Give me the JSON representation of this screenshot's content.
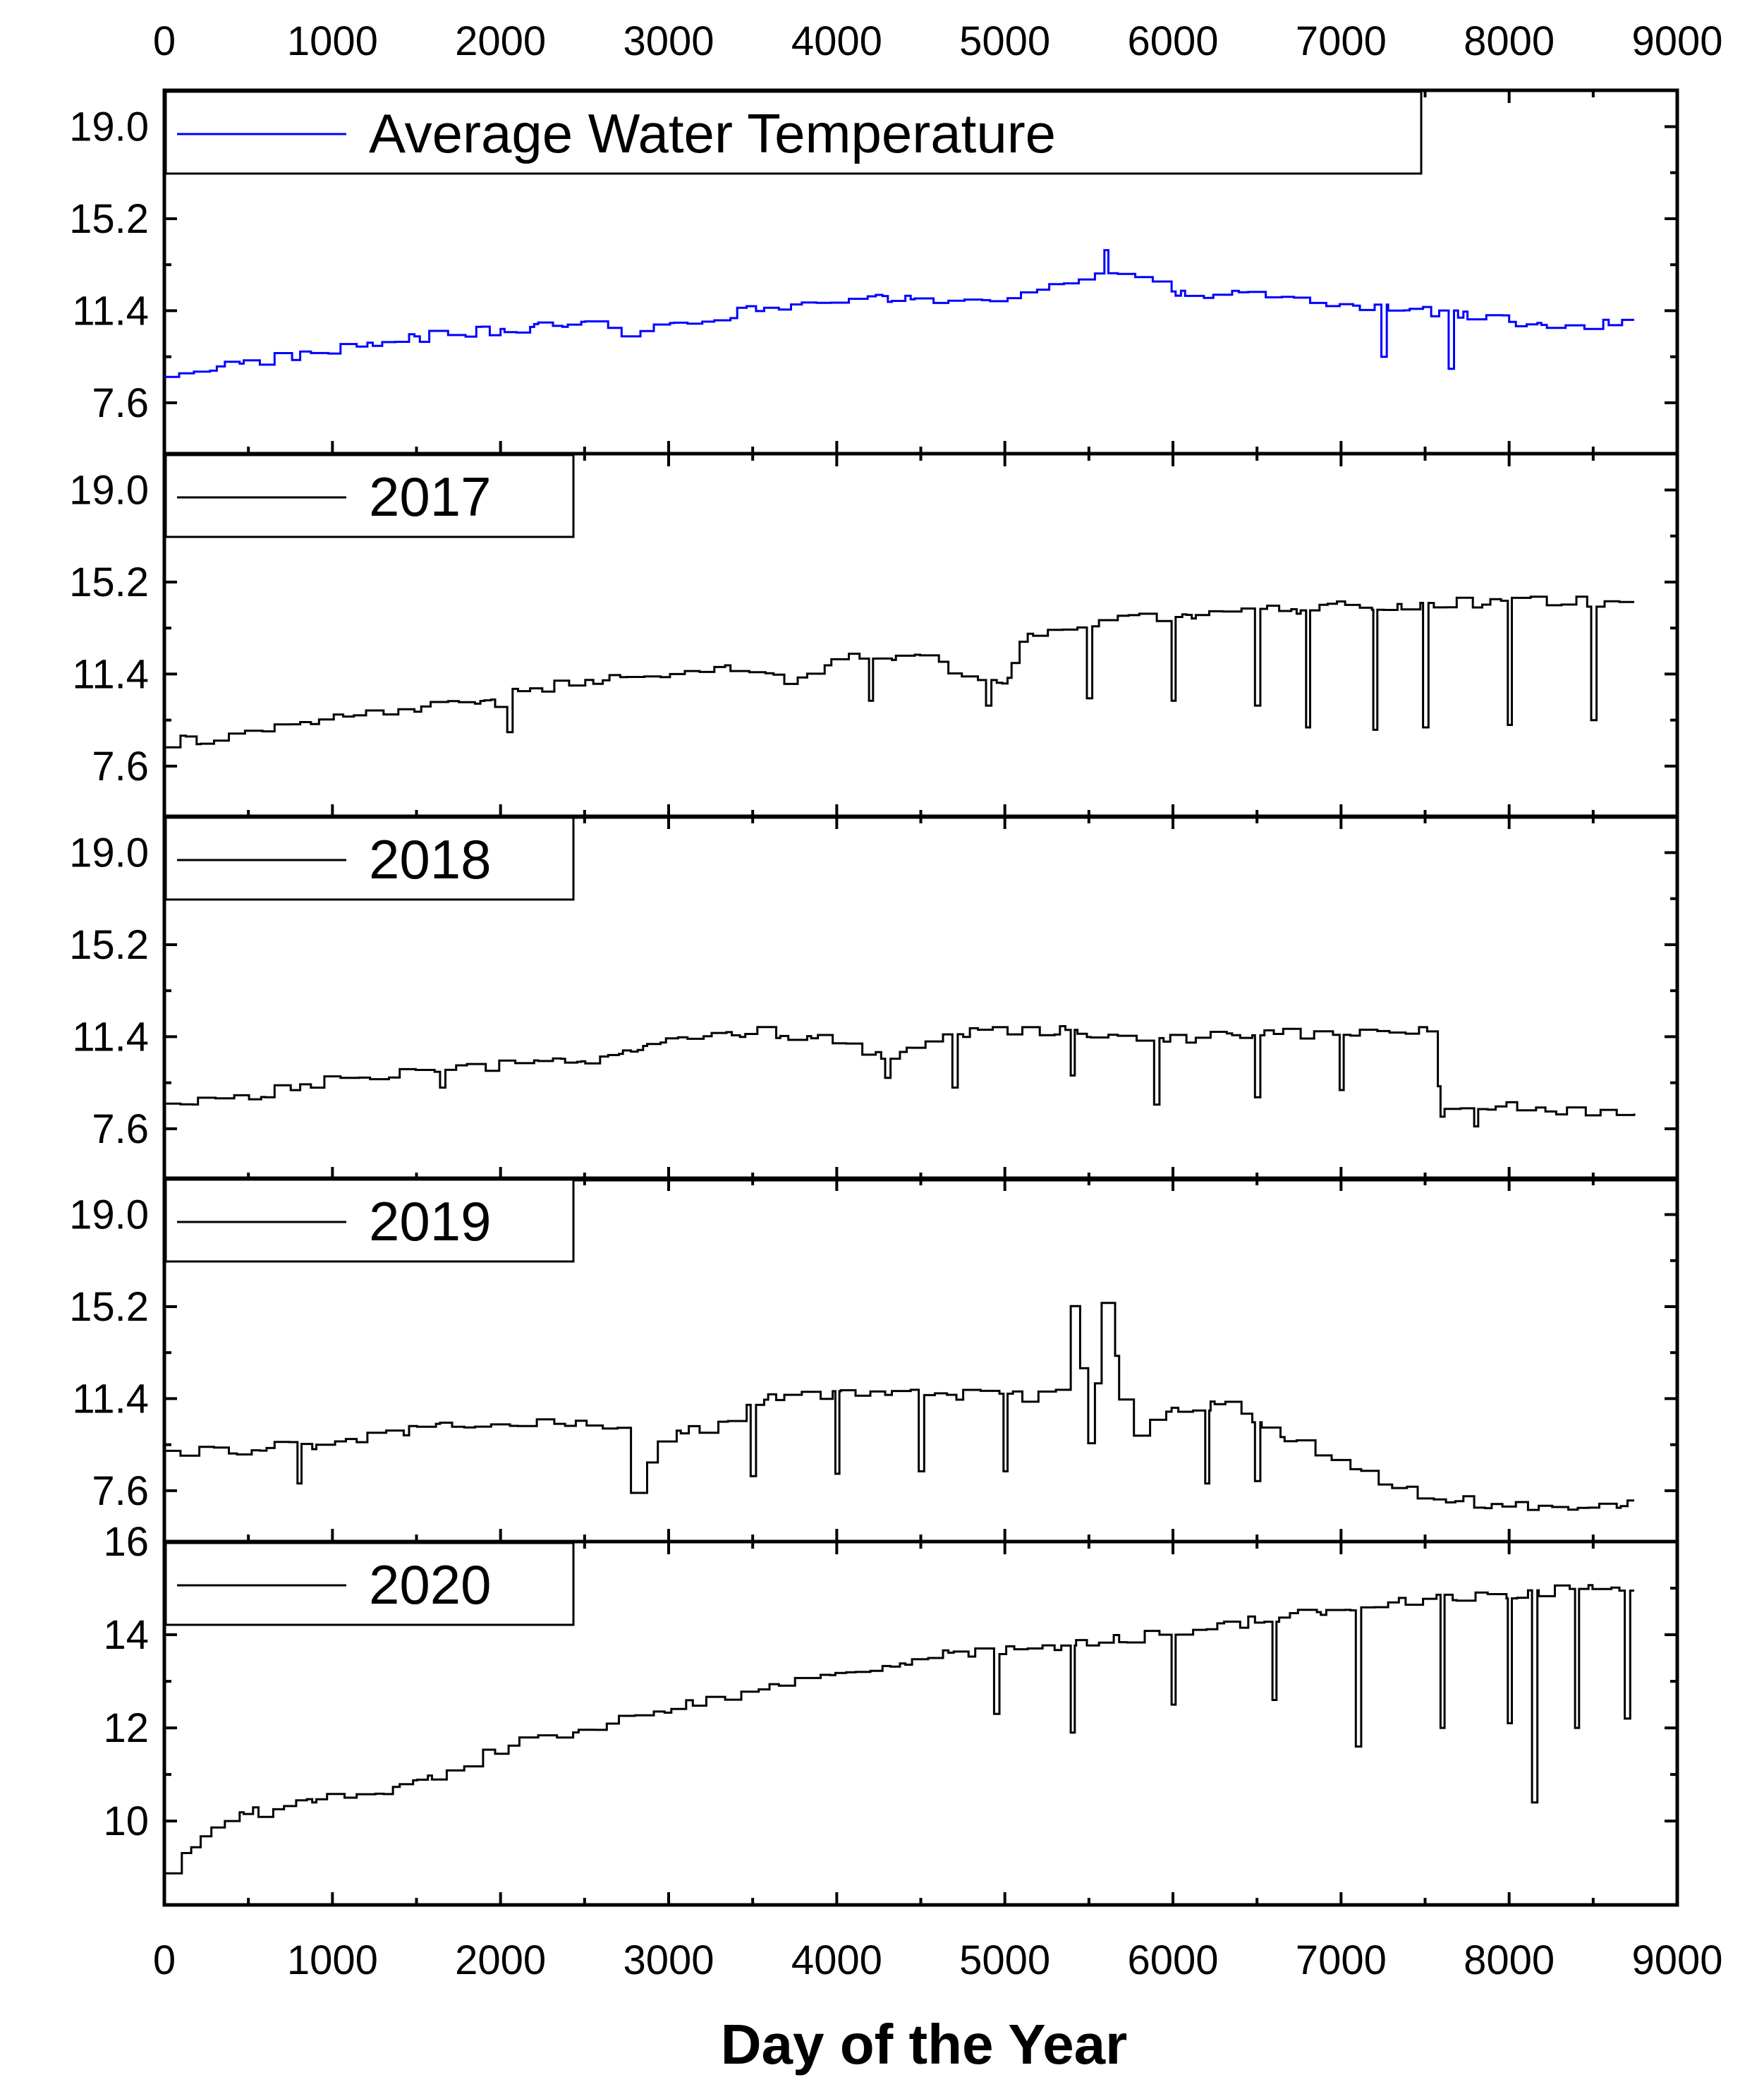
{
  "chart_data": {
    "type": "line",
    "layout": "five vertically stacked panels sharing one x axis",
    "xlabel": "Day of the Year",
    "xlim": [
      0,
      9000
    ],
    "xticks": [
      0,
      1000,
      2000,
      3000,
      4000,
      5000,
      6000,
      7000,
      8000,
      9000
    ],
    "x_tick_labels": [
      "0",
      "1000",
      "2000",
      "3000",
      "4000",
      "5000",
      "6000",
      "7000",
      "8000",
      "9000"
    ],
    "x_axis_labels_shown": "top and bottom",
    "grid": false,
    "legend_position": "top-left of each panel",
    "panels": [
      {
        "name": "Average Water Temperature",
        "color": "#0000ff",
        "ylim": [
          5.5,
          20.5
        ],
        "yticks": [
          7.6,
          11.4,
          15.2,
          19.0
        ],
        "y_tick_labels": [
          "7.6",
          "11.4",
          "15.2",
          "19.0"
        ],
        "points": [
          [
            0,
            8.8
          ],
          [
            500,
            9.3
          ],
          [
            1000,
            9.8
          ],
          [
            1500,
            10.3
          ],
          [
            2000,
            10.6
          ],
          [
            2500,
            10.9
          ],
          [
            2800,
            10.4
          ],
          [
            3000,
            11.0
          ],
          [
            3500,
            11.4
          ],
          [
            4000,
            11.9
          ],
          [
            4500,
            11.8
          ],
          [
            5000,
            12.0
          ],
          [
            5300,
            12.5
          ],
          [
            5600,
            12.9
          ],
          [
            6000,
            12.2
          ],
          [
            6500,
            12.0
          ],
          [
            7000,
            11.6
          ],
          [
            7500,
            11.4
          ],
          [
            8000,
            11.0
          ],
          [
            8500,
            10.8
          ],
          [
            8750,
            11.0
          ]
        ],
        "spikes": [
          [
            5600,
            13.9
          ],
          [
            7250,
            9.5
          ],
          [
            7650,
            9.0
          ]
        ]
      },
      {
        "name": "2017",
        "color": "#000000",
        "ylim": [
          5.5,
          20.5
        ],
        "yticks": [
          7.6,
          11.4,
          15.2,
          19.0
        ],
        "y_tick_labels": [
          "7.6",
          "11.4",
          "15.2",
          "19.0"
        ],
        "points": [
          [
            0,
            8.6
          ],
          [
            500,
            8.9
          ],
          [
            1000,
            9.6
          ],
          [
            1500,
            10.0
          ],
          [
            2000,
            10.2
          ],
          [
            2050,
            10.8
          ],
          [
            2500,
            11.0
          ],
          [
            3000,
            11.5
          ],
          [
            3500,
            11.6
          ],
          [
            3700,
            11.1
          ],
          [
            4000,
            12.1
          ],
          [
            4500,
            12.0
          ],
          [
            4800,
            11.2
          ],
          [
            5000,
            11.0
          ],
          [
            5100,
            13.0
          ],
          [
            5500,
            13.5
          ],
          [
            6000,
            13.8
          ],
          [
            6500,
            14.0
          ],
          [
            7000,
            14.2
          ],
          [
            7500,
            14.3
          ],
          [
            8000,
            14.4
          ],
          [
            8500,
            14.4
          ],
          [
            8750,
            14.4
          ]
        ],
        "spikes": [
          [
            2050,
            9.0
          ],
          [
            4200,
            10.3
          ],
          [
            4900,
            10.1
          ],
          [
            5500,
            10.4
          ],
          [
            6000,
            10.3
          ],
          [
            6500,
            10.1
          ],
          [
            6800,
            9.2
          ],
          [
            7200,
            9.1
          ],
          [
            7500,
            9.2
          ],
          [
            8000,
            9.3
          ],
          [
            8500,
            9.5
          ]
        ]
      },
      {
        "name": "2018",
        "color": "#000000",
        "ylim": [
          5.5,
          20.5
        ],
        "yticks": [
          7.6,
          11.4,
          15.2,
          19.0
        ],
        "y_tick_labels": [
          "7.6",
          "11.4",
          "15.2",
          "19.0"
        ],
        "points": [
          [
            0,
            8.5
          ],
          [
            500,
            9.0
          ],
          [
            1000,
            9.6
          ],
          [
            1500,
            9.9
          ],
          [
            2000,
            10.2
          ],
          [
            2500,
            10.5
          ],
          [
            3000,
            11.2
          ],
          [
            3500,
            11.6
          ],
          [
            3900,
            11.4
          ],
          [
            4150,
            10.6
          ],
          [
            4300,
            10.5
          ],
          [
            4500,
            11.3
          ],
          [
            5000,
            11.7
          ],
          [
            5500,
            11.6
          ],
          [
            6000,
            11.3
          ],
          [
            6500,
            11.6
          ],
          [
            7000,
            11.5
          ],
          [
            7500,
            11.8
          ],
          [
            7600,
            8.6
          ],
          [
            8000,
            8.5
          ],
          [
            8500,
            8.3
          ],
          [
            8750,
            8.3
          ]
        ],
        "spikes": [
          [
            1650,
            9.3
          ],
          [
            4300,
            9.7
          ],
          [
            4700,
            9.3
          ],
          [
            5400,
            9.8
          ],
          [
            5900,
            8.6
          ],
          [
            6500,
            8.9
          ],
          [
            7000,
            9.2
          ],
          [
            7600,
            8.1
          ],
          [
            7800,
            7.7
          ]
        ]
      },
      {
        "name": "2019",
        "color": "#000000",
        "ylim": [
          5.5,
          20.5
        ],
        "yticks": [
          7.6,
          11.4,
          15.2,
          19.0
        ],
        "y_tick_labels": [
          "7.6",
          "11.4",
          "15.2",
          "19.0"
        ],
        "points": [
          [
            0,
            9.2
          ],
          [
            500,
            9.3
          ],
          [
            1000,
            9.6
          ],
          [
            1500,
            10.2
          ],
          [
            2000,
            10.3
          ],
          [
            2500,
            10.5
          ],
          [
            2700,
            10.0
          ],
          [
            2800,
            6.9
          ],
          [
            2900,
            9.5
          ],
          [
            3300,
            10.5
          ],
          [
            3600,
            11.5
          ],
          [
            4000,
            11.6
          ],
          [
            4500,
            11.6
          ],
          [
            5000,
            11.5
          ],
          [
            5300,
            11.5
          ],
          [
            5400,
            15.7
          ],
          [
            5500,
            9.5
          ],
          [
            5600,
            17.0
          ],
          [
            5700,
            9.8
          ],
          [
            6000,
            11.0
          ],
          [
            6300,
            11.3
          ],
          [
            6600,
            10.0
          ],
          [
            7000,
            8.5
          ],
          [
            7500,
            7.3
          ],
          [
            8000,
            7.0
          ],
          [
            8500,
            7.0
          ],
          [
            8750,
            7.0
          ]
        ],
        "spikes": [
          [
            800,
            7.9
          ],
          [
            3500,
            8.2
          ],
          [
            4000,
            8.3
          ],
          [
            4500,
            8.4
          ],
          [
            5000,
            8.4
          ],
          [
            6200,
            7.9
          ],
          [
            6500,
            8.0
          ]
        ]
      },
      {
        "name": "2020",
        "color": "#000000",
        "ylim": [
          8.2,
          16.0
        ],
        "yticks": [
          10,
          12,
          14,
          16
        ],
        "y_tick_labels": [
          "10",
          "12",
          "14",
          "16"
        ],
        "points": [
          [
            0,
            8.9
          ],
          [
            200,
            9.6
          ],
          [
            400,
            10.1
          ],
          [
            1000,
            10.5
          ],
          [
            1500,
            10.8
          ],
          [
            2000,
            11.6
          ],
          [
            2500,
            12.0
          ],
          [
            3000,
            12.4
          ],
          [
            3500,
            12.8
          ],
          [
            4000,
            13.2
          ],
          [
            4500,
            13.5
          ],
          [
            5000,
            13.7
          ],
          [
            5500,
            13.8
          ],
          [
            6000,
            14.1
          ],
          [
            6500,
            14.3
          ],
          [
            7000,
            14.6
          ],
          [
            7500,
            14.8
          ],
          [
            8000,
            14.9
          ],
          [
            8500,
            15.0
          ],
          [
            8750,
            15.1
          ]
        ],
        "spikes": [
          [
            4950,
            12.3
          ],
          [
            5400,
            11.9
          ],
          [
            6000,
            12.5
          ],
          [
            6600,
            12.6
          ],
          [
            7100,
            11.6
          ],
          [
            7600,
            12.0
          ],
          [
            8000,
            12.1
          ],
          [
            8150,
            10.4
          ],
          [
            8400,
            12.0
          ],
          [
            8700,
            12.2
          ]
        ]
      }
    ]
  }
}
